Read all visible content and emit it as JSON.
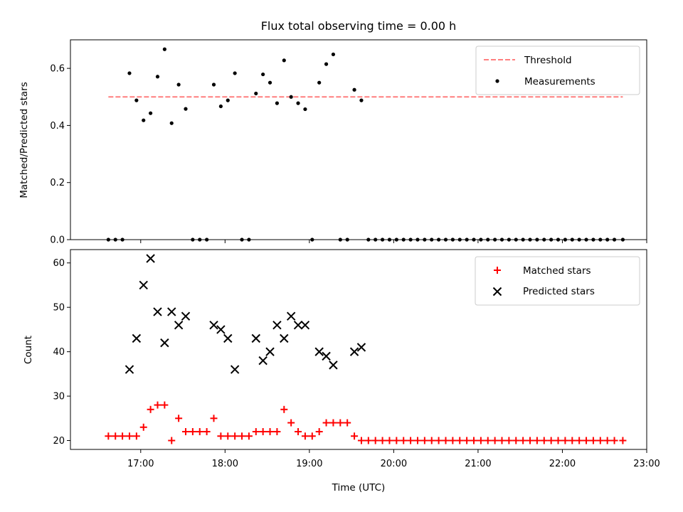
{
  "chart_data": [
    {
      "type": "scatter",
      "title": "Flux total observing time = 0.00 h",
      "xlabel": "",
      "ylabel": "Matched/Predicted stars",
      "ylim": [
        0,
        0.7
      ],
      "yticks": [
        "0.0",
        "0.2",
        "0.4",
        "0.6"
      ],
      "xlim": [
        "16:10",
        "23:00"
      ],
      "xticks": [
        "17:00",
        "18:00",
        "19:00",
        "20:00",
        "21:00",
        "22:00",
        "23:00"
      ],
      "xtick_labels_visible": false,
      "legend_position": "upper-right",
      "threshold": {
        "name": "Threshold",
        "value": 0.5,
        "x_start": "16:37",
        "x_end": "22:43",
        "color": "#ff7f7f"
      },
      "series": [
        {
          "name": "Measurements",
          "color": "#000000",
          "points": [
            [
              "16:37",
              0.0
            ],
            [
              "16:42",
              0.0
            ],
            [
              "16:47",
              0.0
            ],
            [
              "16:52",
              0.583
            ],
            [
              "16:57",
              0.488
            ],
            [
              "17:02",
              0.418
            ],
            [
              "17:07",
              0.443
            ],
            [
              "17:12",
              0.571
            ],
            [
              "17:17",
              0.667
            ],
            [
              "17:22",
              0.408
            ],
            [
              "17:27",
              0.543
            ],
            [
              "17:32",
              0.458
            ],
            [
              "17:37",
              0.0
            ],
            [
              "17:42",
              0.0
            ],
            [
              "17:47",
              0.0
            ],
            [
              "17:52",
              0.543
            ],
            [
              "17:57",
              0.467
            ],
            [
              "18:02",
              0.488
            ],
            [
              "18:07",
              0.583
            ],
            [
              "18:12",
              0.0
            ],
            [
              "18:17",
              0.0
            ],
            [
              "18:22",
              0.512
            ],
            [
              "18:27",
              0.579
            ],
            [
              "18:32",
              0.55
            ],
            [
              "18:37",
              0.478
            ],
            [
              "18:42",
              0.628
            ],
            [
              "18:47",
              0.5
            ],
            [
              "18:52",
              0.478
            ],
            [
              "18:57",
              0.457
            ],
            [
              "19:02",
              0.0
            ],
            [
              "19:07",
              0.55
            ],
            [
              "19:12",
              0.615
            ],
            [
              "19:17",
              0.649
            ],
            [
              "19:22",
              0.0
            ],
            [
              "19:27",
              0.0
            ],
            [
              "19:32",
              0.525
            ],
            [
              "19:37",
              0.488
            ],
            [
              "19:42",
              0.0
            ],
            [
              "19:47",
              0.0
            ],
            [
              "19:52",
              0.0
            ],
            [
              "19:57",
              0.0
            ],
            [
              "20:02",
              0.0
            ],
            [
              "20:07",
              0.0
            ],
            [
              "20:12",
              0.0
            ],
            [
              "20:17",
              0.0
            ],
            [
              "20:22",
              0.0
            ],
            [
              "20:27",
              0.0
            ],
            [
              "20:32",
              0.0
            ],
            [
              "20:37",
              0.0
            ],
            [
              "20:42",
              0.0
            ],
            [
              "20:47",
              0.0
            ],
            [
              "20:52",
              0.0
            ],
            [
              "20:57",
              0.0
            ],
            [
              "21:02",
              0.0
            ],
            [
              "21:07",
              0.0
            ],
            [
              "21:12",
              0.0
            ],
            [
              "21:17",
              0.0
            ],
            [
              "21:22",
              0.0
            ],
            [
              "21:27",
              0.0
            ],
            [
              "21:32",
              0.0
            ],
            [
              "21:37",
              0.0
            ],
            [
              "21:42",
              0.0
            ],
            [
              "21:47",
              0.0
            ],
            [
              "21:52",
              0.0
            ],
            [
              "21:57",
              0.0
            ],
            [
              "22:02",
              0.0
            ],
            [
              "22:07",
              0.0
            ],
            [
              "22:12",
              0.0
            ],
            [
              "22:17",
              0.0
            ],
            [
              "22:22",
              0.0
            ],
            [
              "22:27",
              0.0
            ],
            [
              "22:32",
              0.0
            ],
            [
              "22:37",
              0.0
            ],
            [
              "22:43",
              0.0
            ]
          ]
        }
      ]
    },
    {
      "type": "scatter",
      "title": "",
      "xlabel": "Time (UTC)",
      "ylabel": "Count",
      "ylim": [
        18,
        63
      ],
      "yticks": [
        "20",
        "30",
        "40",
        "50",
        "60"
      ],
      "xlim": [
        "16:10",
        "23:00"
      ],
      "xticks": [
        "17:00",
        "18:00",
        "19:00",
        "20:00",
        "21:00",
        "22:00",
        "23:00"
      ],
      "legend_position": "upper-right",
      "series": [
        {
          "name": "Matched stars",
          "color": "#ff0000",
          "marker": "plus",
          "points": [
            [
              "16:37",
              21
            ],
            [
              "16:42",
              21
            ],
            [
              "16:47",
              21
            ],
            [
              "16:52",
              21
            ],
            [
              "16:57",
              21
            ],
            [
              "17:02",
              23
            ],
            [
              "17:07",
              27
            ],
            [
              "17:12",
              28
            ],
            [
              "17:17",
              28
            ],
            [
              "17:22",
              20
            ],
            [
              "17:27",
              25
            ],
            [
              "17:32",
              22
            ],
            [
              "17:37",
              22
            ],
            [
              "17:42",
              22
            ],
            [
              "17:47",
              22
            ],
            [
              "17:52",
              25
            ],
            [
              "17:57",
              21
            ],
            [
              "18:02",
              21
            ],
            [
              "18:07",
              21
            ],
            [
              "18:12",
              21
            ],
            [
              "18:17",
              21
            ],
            [
              "18:22",
              22
            ],
            [
              "18:27",
              22
            ],
            [
              "18:32",
              22
            ],
            [
              "18:37",
              22
            ],
            [
              "18:42",
              27
            ],
            [
              "18:47",
              24
            ],
            [
              "18:52",
              22
            ],
            [
              "18:57",
              21
            ],
            [
              "19:02",
              21
            ],
            [
              "19:07",
              22
            ],
            [
              "19:12",
              24
            ],
            [
              "19:17",
              24
            ],
            [
              "19:22",
              24
            ],
            [
              "19:27",
              24
            ],
            [
              "19:32",
              21
            ],
            [
              "19:37",
              20
            ],
            [
              "19:42",
              20
            ],
            [
              "19:47",
              20
            ],
            [
              "19:52",
              20
            ],
            [
              "19:57",
              20
            ],
            [
              "20:02",
              20
            ],
            [
              "20:07",
              20
            ],
            [
              "20:12",
              20
            ],
            [
              "20:17",
              20
            ],
            [
              "20:22",
              20
            ],
            [
              "20:27",
              20
            ],
            [
              "20:32",
              20
            ],
            [
              "20:37",
              20
            ],
            [
              "20:42",
              20
            ],
            [
              "20:47",
              20
            ],
            [
              "20:52",
              20
            ],
            [
              "20:57",
              20
            ],
            [
              "21:02",
              20
            ],
            [
              "21:07",
              20
            ],
            [
              "21:12",
              20
            ],
            [
              "21:17",
              20
            ],
            [
              "21:22",
              20
            ],
            [
              "21:27",
              20
            ],
            [
              "21:32",
              20
            ],
            [
              "21:37",
              20
            ],
            [
              "21:42",
              20
            ],
            [
              "21:47",
              20
            ],
            [
              "21:52",
              20
            ],
            [
              "21:57",
              20
            ],
            [
              "22:02",
              20
            ],
            [
              "22:07",
              20
            ],
            [
              "22:12",
              20
            ],
            [
              "22:17",
              20
            ],
            [
              "22:22",
              20
            ],
            [
              "22:27",
              20
            ],
            [
              "22:32",
              20
            ],
            [
              "22:37",
              20
            ],
            [
              "22:43",
              20
            ]
          ]
        },
        {
          "name": "Predicted stars",
          "color": "#000000",
          "marker": "x",
          "points": [
            [
              "16:52",
              36
            ],
            [
              "16:57",
              43
            ],
            [
              "17:02",
              55
            ],
            [
              "17:07",
              61
            ],
            [
              "17:12",
              49
            ],
            [
              "17:17",
              42
            ],
            [
              "17:22",
              49
            ],
            [
              "17:27",
              46
            ],
            [
              "17:32",
              48
            ],
            [
              "17:52",
              46
            ],
            [
              "17:57",
              45
            ],
            [
              "18:02",
              43
            ],
            [
              "18:07",
              36
            ],
            [
              "18:22",
              43
            ],
            [
              "18:27",
              38
            ],
            [
              "18:32",
              40
            ],
            [
              "18:37",
              46
            ],
            [
              "18:42",
              43
            ],
            [
              "18:47",
              48
            ],
            [
              "18:52",
              46
            ],
            [
              "18:57",
              46
            ],
            [
              "19:07",
              40
            ],
            [
              "19:12",
              39
            ],
            [
              "19:17",
              37
            ],
            [
              "19:32",
              40
            ],
            [
              "19:37",
              41
            ]
          ]
        }
      ]
    }
  ]
}
